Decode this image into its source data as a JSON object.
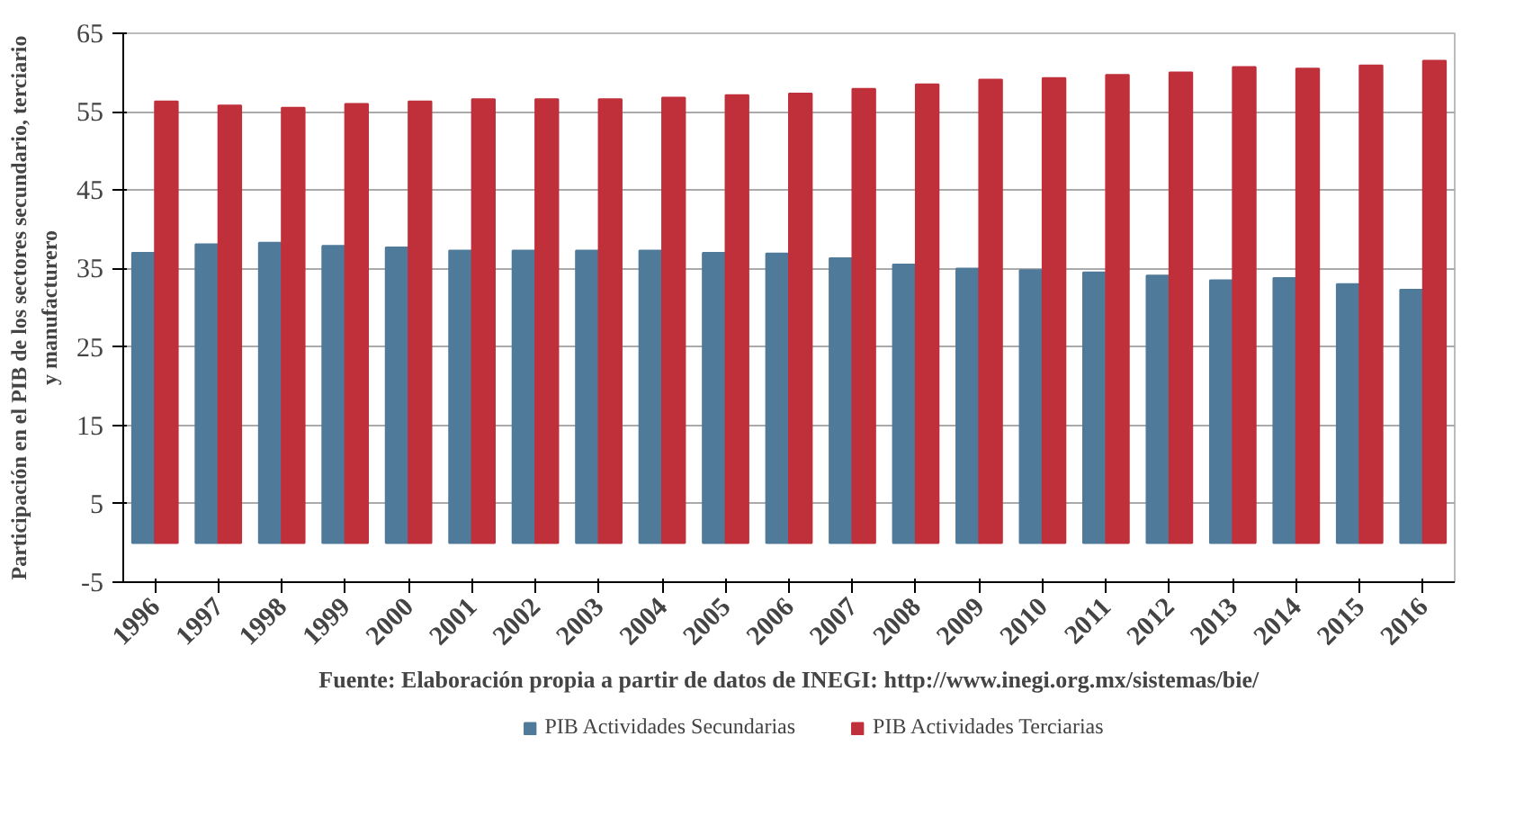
{
  "chart_data": {
    "type": "bar",
    "ylabel": "Participación en el PIB de los sectores secundario, terciario\ny manufacturero",
    "categories": [
      "1996",
      "1997",
      "1998",
      "1999",
      "2000",
      "2001",
      "2002",
      "2003",
      "2004",
      "2005",
      "2006",
      "2007",
      "2008",
      "2009",
      "2010",
      "2011",
      "2012",
      "2013",
      "2014",
      "2015",
      "2016"
    ],
    "series": [
      {
        "name": "PIB Actividades Secundarias",
        "color": "#4f7a9a",
        "values": [
          37.0,
          38.1,
          38.3,
          37.9,
          37.7,
          37.3,
          37.3,
          37.3,
          37.3,
          37.0,
          36.9,
          36.3,
          35.5,
          35.0,
          34.8,
          34.5,
          34.1,
          33.5,
          33.8,
          33.0,
          32.3
        ]
      },
      {
        "name": "PIB Actividades Terciarias",
        "color": "#c0303a",
        "values": [
          56.3,
          55.8,
          55.5,
          56.0,
          56.3,
          56.6,
          56.6,
          56.6,
          56.8,
          57.1,
          57.3,
          57.9,
          58.5,
          59.1,
          59.3,
          59.7,
          60.0,
          60.7,
          60.5,
          60.9,
          61.5
        ]
      }
    ],
    "ylim": [
      -5,
      65
    ],
    "yticks": [
      -5,
      5,
      15,
      25,
      35,
      45,
      55,
      65
    ],
    "grid": "y",
    "legend": "bottom",
    "annotations": [
      "Fuente: Elaboración propia a partir de datos de INEGI: http://www.inegi.org.mx/sistemas/bie/"
    ]
  }
}
